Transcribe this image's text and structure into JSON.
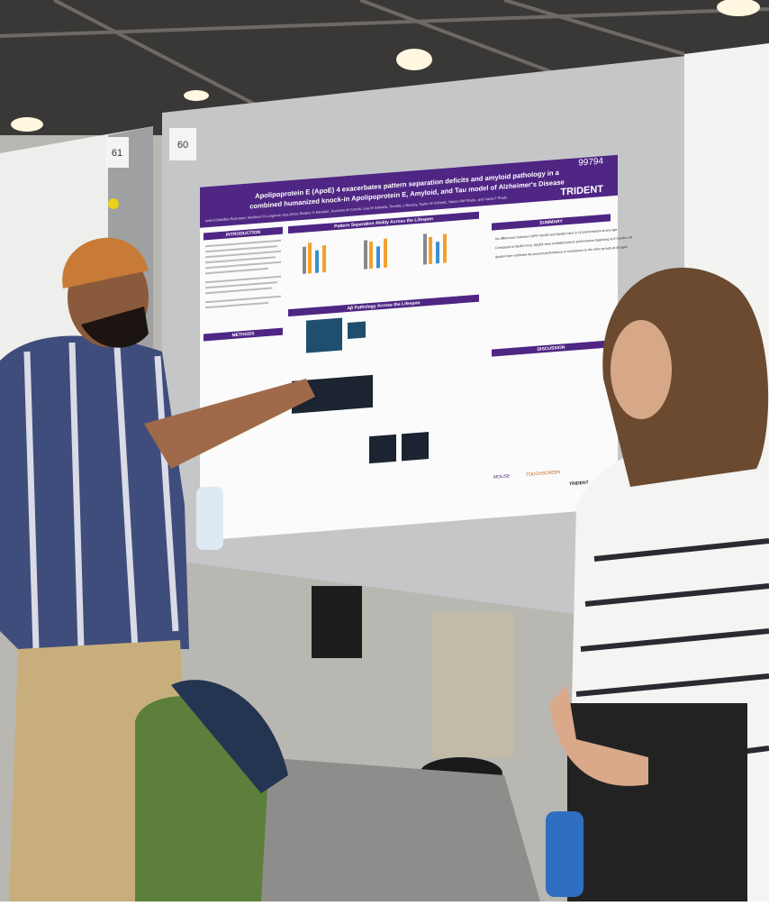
{
  "board_numbers": [
    "61",
    "60"
  ],
  "poster": {
    "number": "99794",
    "logo": "TRIDENT",
    "title_lines": [
      "Apolipoprotein E (ApoE) 4 exacerbates pattern separation deficits and amyloid pathology in a",
      "combined humanized knock-in Apolipoprotein E, Amyloid, and Tau model of Alzheimer's Disease"
    ],
    "authors": "Ariel A Batallán Burrowes, Madison R Longmuir, Aya Amar, Beatriz G Muratori, Suzanne M Cerutti, Lisa M Saksida, Timothy J Bussey, Taylor W Schmitz, Marco AM Prado, and Vania F Prado",
    "sections": {
      "introduction": "INTRODUCTION",
      "methods": "METHODS",
      "pattern_separation": "Pattern Separation Ability Across the Lifespan",
      "pathology": "Aβ Pathology Across the Lifespan",
      "summary": "SUMMARY",
      "discussion": "DISCUSSION"
    },
    "summary_items": [
      "No differences between hAPP, ApoE3 and ApoE4 mice in LD performance at any age",
      "Compared to ApoE3 mice, ApoE4 mice exhibited poorer performance beginning at 6 months old",
      "ApoE4 mice exhibited the poorest performance in comparison to the other groups at all ages"
    ],
    "footer_logos": [
      "MOUSE",
      "TOUCHSCREEN",
      "TRIDENT"
    ]
  }
}
